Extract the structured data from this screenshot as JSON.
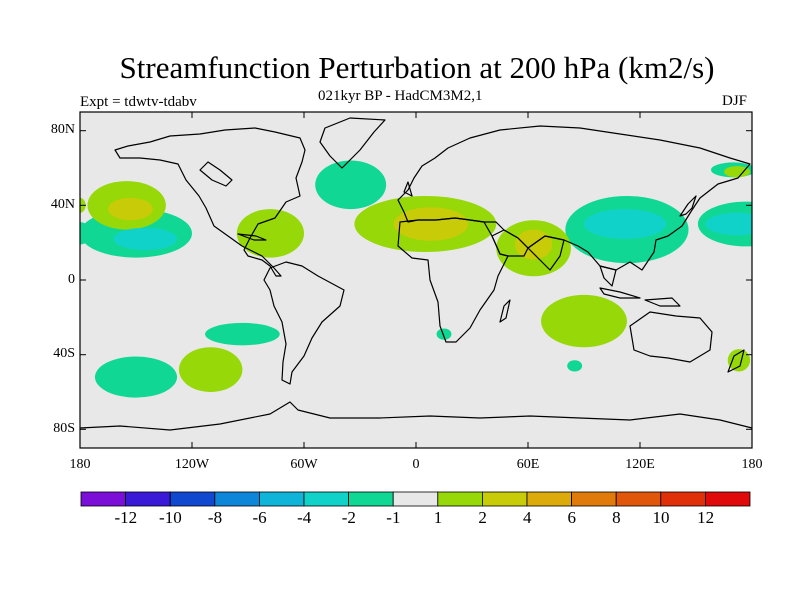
{
  "title": "Streamfunction Perturbation at 200 hPa (km2/s)",
  "subtitle": "021kyr BP - HadCM3M2,1",
  "left_label": "Expt = tdwtv-tdabv",
  "season": "DJF",
  "lat_labels": [
    "80N",
    "40N",
    "0",
    "40S",
    "80S"
  ],
  "lon_labels": [
    "180",
    "120W",
    "60W",
    "0",
    "60E",
    "120E",
    "180"
  ],
  "colorbar": {
    "labels": [
      "-12",
      "-10",
      "-8",
      "-6",
      "-4",
      "-2",
      "-1",
      "1",
      "2",
      "4",
      "6",
      "8",
      "10",
      "12"
    ],
    "colors": [
      "#7b0fd8",
      "#3a1ad6",
      "#1048d0",
      "#0d85d8",
      "#10b4d8",
      "#10d2c8",
      "#10d894",
      "#e8e8e8",
      "#96d808",
      "#c8cc08",
      "#dcaa0a",
      "#e07a0a",
      "#e0560a",
      "#e0300a",
      "#e00a0a"
    ]
  },
  "colors": {
    "background": "#e8e8e8",
    "neg_light": "#10d894",
    "neg_medium": "#10d2c8",
    "pos_light": "#96d808",
    "pos_medium": "#c8cc08",
    "pos_strong": "#dcaa0a"
  },
  "chart_data": {
    "type": "heatmap",
    "title": "Streamfunction Perturbation at 200 hPa (km2/s)",
    "subtitle": "021kyr BP - HadCM3M2,1",
    "experiment": "Expt = tdwtv-tdabv",
    "season": "DJF",
    "variable": "streamfunction perturbation",
    "units": "km2/s",
    "level": "200 hPa",
    "xlim": [
      -180,
      180
    ],
    "ylim": [
      -90,
      90
    ],
    "xticks": [
      "180",
      "120W",
      "60W",
      "0",
      "60E",
      "120E",
      "180"
    ],
    "yticks": [
      "80N",
      "40N",
      "0",
      "40S",
      "80S"
    ],
    "levels": [
      -12,
      -10,
      -8,
      -6,
      -4,
      -2,
      -1,
      1,
      2,
      4,
      6,
      8,
      10,
      12
    ],
    "regions": [
      {
        "id": "npac-neg-outer",
        "lon": -150,
        "lat": 25,
        "rx": 30,
        "ry": 13,
        "class": "-2 to -1",
        "color": "neg_light"
      },
      {
        "id": "npac-neg-inner",
        "lon": -145,
        "lat": 22,
        "rx": 17,
        "ry": 6,
        "class": "-4 to -2",
        "color": "neg_medium"
      },
      {
        "id": "wpac-neg-outer",
        "lon": 113,
        "lat": 27,
        "rx": 33,
        "ry": 18,
        "class": "-2 to -1",
        "color": "neg_light"
      },
      {
        "id": "wpac-neg-inner",
        "lon": 112,
        "lat": 30,
        "rx": 22,
        "ry": 8,
        "class": "-4 to -2",
        "color": "neg_medium"
      },
      {
        "id": "epac-edge-neg-outer",
        "lon": 177,
        "lat": 30,
        "rx": 26,
        "ry": 12,
        "class": "-2 to -1",
        "color": "neg_light"
      },
      {
        "id": "epac-edge-neg-inner",
        "lon": 172,
        "lat": 30,
        "rx": 17,
        "ry": 6,
        "class": "-4 to -2",
        "color": "neg_medium"
      },
      {
        "id": "dateline-west-neg",
        "lon": -180,
        "lat": 25,
        "rx": 6,
        "ry": 6,
        "class": "-2 to -1",
        "color": "neg_light"
      },
      {
        "id": "natl-neg",
        "lon": -35,
        "lat": 51,
        "rx": 19,
        "ry": 13,
        "class": "-2 to -1",
        "color": "neg_light"
      },
      {
        "id": "spac-neg-1",
        "lon": -150,
        "lat": -52,
        "rx": 22,
        "ry": 11,
        "class": "-2 to -1",
        "color": "neg_light"
      },
      {
        "id": "spac-neg-2",
        "lon": -93,
        "lat": -29,
        "rx": 20,
        "ry": 6,
        "class": "-2 to -1",
        "color": "neg_light"
      },
      {
        "id": "satl-neg-small",
        "lon": 15,
        "lat": -29,
        "rx": 4,
        "ry": 3,
        "class": "-2 to -1",
        "color": "neg_light"
      },
      {
        "id": "sio-neg-small",
        "lon": 85,
        "lat": -46,
        "rx": 4,
        "ry": 3,
        "class": "-2 to -1",
        "color": "neg_light"
      },
      {
        "id": "npac-pos-outer",
        "lon": -155,
        "lat": 40,
        "rx": 21,
        "ry": 13,
        "class": "1 to 2",
        "color": "pos_light"
      },
      {
        "id": "npac-pos-inner",
        "lon": -153,
        "lat": 38,
        "rx": 12,
        "ry": 6,
        "class": "2 to 4",
        "color": "pos_medium"
      },
      {
        "id": "caribbean-pos",
        "lon": -78,
        "lat": 25,
        "rx": 18,
        "ry": 13,
        "class": "1 to 2",
        "color": "pos_light"
      },
      {
        "id": "nafrica-pos-outer",
        "lon": 5,
        "lat": 30,
        "rx": 38,
        "ry": 15,
        "class": "1 to 2",
        "color": "pos_light"
      },
      {
        "id": "nafrica-pos-inner",
        "lon": 8,
        "lat": 30,
        "rx": 20,
        "ry": 9,
        "class": "2 to 4",
        "color": "pos_medium"
      },
      {
        "id": "arabia-pos-outer",
        "lon": 63,
        "lat": 17,
        "rx": 20,
        "ry": 15,
        "class": "1 to 2",
        "color": "pos_light"
      },
      {
        "id": "arabia-pos-inner",
        "lon": 63,
        "lat": 19,
        "rx": 10,
        "ry": 8,
        "class": "2 to 4",
        "color": "pos_medium"
      },
      {
        "id": "sio-pos",
        "lon": 90,
        "lat": -22,
        "rx": 23,
        "ry": 14,
        "class": "1 to 2",
        "color": "pos_light"
      },
      {
        "id": "spac-pos",
        "lon": -110,
        "lat": -48,
        "rx": 17,
        "ry": 12,
        "class": "1 to 2",
        "color": "pos_light"
      },
      {
        "id": "nzealand-pos",
        "lon": 173,
        "lat": -43,
        "rx": 6,
        "ry": 6,
        "class": "1 to 2",
        "color": "pos_light"
      },
      {
        "id": "dateline-west-pos",
        "lon": -180,
        "lat": 40,
        "rx": 3,
        "ry": 4,
        "class": "1 to 2",
        "color": "pos_light"
      },
      {
        "id": "kamchatka-neg",
        "lon": 170,
        "lat": 59,
        "rx": 12,
        "ry": 4,
        "class": "-2 to -1",
        "color": "neg_light"
      },
      {
        "id": "kamchatka-pos",
        "lon": 172,
        "lat": 58,
        "rx": 7,
        "ry": 3,
        "class": "1 to 2",
        "color": "pos_light"
      }
    ]
  }
}
